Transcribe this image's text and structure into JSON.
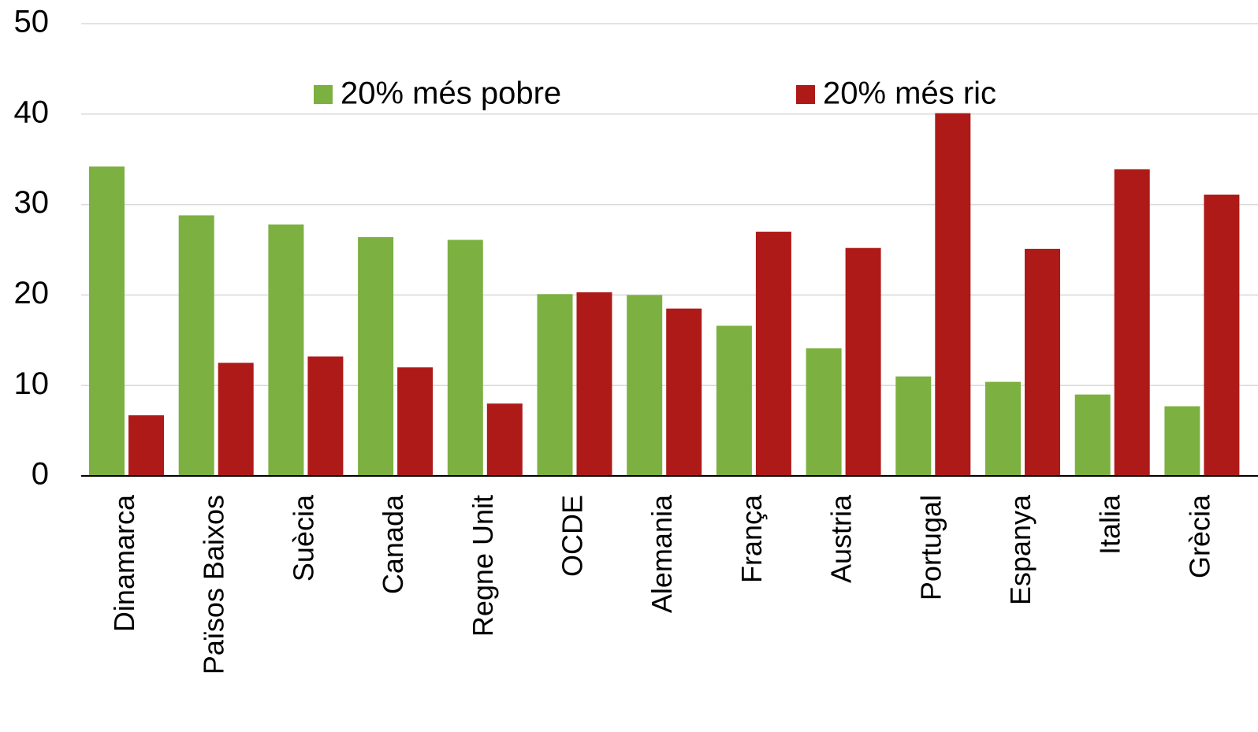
{
  "chart_data": {
    "type": "bar",
    "categories": [
      "Dinamarca",
      "Països Baixos",
      "Suècia",
      "Canada",
      "Regne Unit",
      "OCDE",
      "Alemania",
      "França",
      "Austria",
      "Portugal",
      "Espanya",
      "Italia",
      "Grècia"
    ],
    "series": [
      {
        "name": "20% més pobre",
        "color": "#7cb041",
        "values": [
          34.2,
          28.8,
          27.8,
          26.4,
          26.1,
          20.1,
          20.0,
          16.6,
          14.1,
          11.0,
          10.4,
          9.0,
          7.7
        ]
      },
      {
        "name": "20% més ric",
        "color": "#ae1a18",
        "values": [
          6.7,
          12.5,
          13.2,
          12.0,
          8.0,
          20.3,
          18.5,
          27.0,
          25.2,
          40.1,
          25.1,
          33.9,
          31.1
        ]
      }
    ],
    "ylim": [
      0,
      50
    ],
    "yticks": [
      0,
      10,
      20,
      30,
      40,
      50
    ],
    "grid": true,
    "legend": "top"
  }
}
